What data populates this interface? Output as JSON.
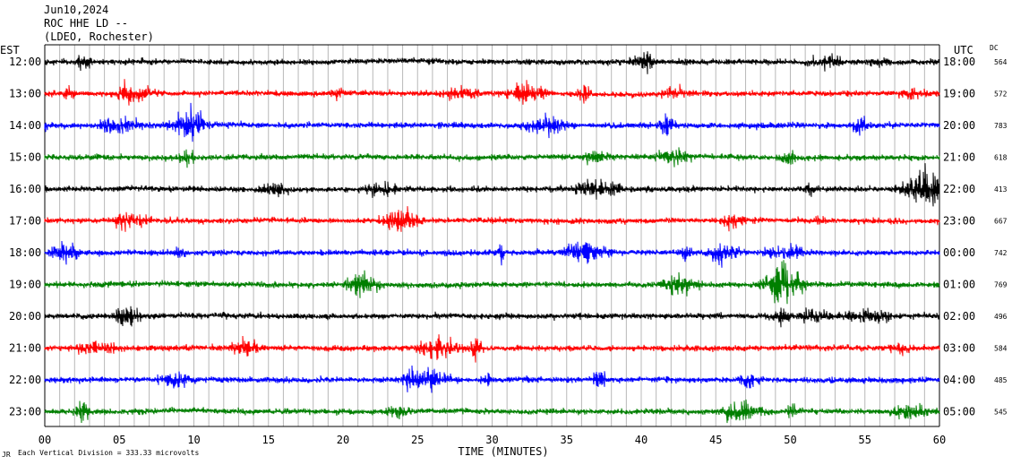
{
  "header": {
    "date": "Jun10,2024",
    "station": "ROC HHE LD --",
    "location": "(LDEO, Rochester)"
  },
  "left_tz": "EST",
  "right_tz": "UTC",
  "dc_header": "DC",
  "footnote": "Each Vertical Division =  333.33 microvolts",
  "colors": {
    "black": "#000000",
    "red": "#ff0000",
    "blue": "#0000ff",
    "green": "#007f00"
  },
  "chart_data": {
    "type": "line",
    "title": "",
    "xlabel": "TIME (MINUTES)",
    "ylabel": "",
    "xlim": [
      0,
      60
    ],
    "x_ticks": [
      "00",
      "05",
      "10",
      "15",
      "20",
      "25",
      "30",
      "35",
      "40",
      "45",
      "50",
      "55",
      "60"
    ],
    "color_cycle": [
      "black",
      "red",
      "blue",
      "green"
    ],
    "rows": [
      {
        "est": "12:00",
        "utc": "18:00",
        "dc": "564"
      },
      {
        "est": "13:00",
        "utc": "19:00",
        "dc": "572"
      },
      {
        "est": "14:00",
        "utc": "20:00",
        "dc": "783"
      },
      {
        "est": "15:00",
        "utc": "21:00",
        "dc": "618"
      },
      {
        "est": "16:00",
        "utc": "22:00",
        "dc": "413"
      },
      {
        "est": "17:00",
        "utc": "23:00",
        "dc": "667"
      },
      {
        "est": "18:00",
        "utc": "00:00",
        "dc": "742"
      },
      {
        "est": "19:00",
        "utc": "01:00",
        "dc": "769"
      },
      {
        "est": "20:00",
        "utc": "02:00",
        "dc": "496"
      },
      {
        "est": "21:00",
        "utc": "03:00",
        "dc": "584"
      },
      {
        "est": "22:00",
        "utc": "04:00",
        "dc": "485"
      },
      {
        "est": "23:00",
        "utc": "05:00",
        "dc": "545"
      }
    ]
  }
}
